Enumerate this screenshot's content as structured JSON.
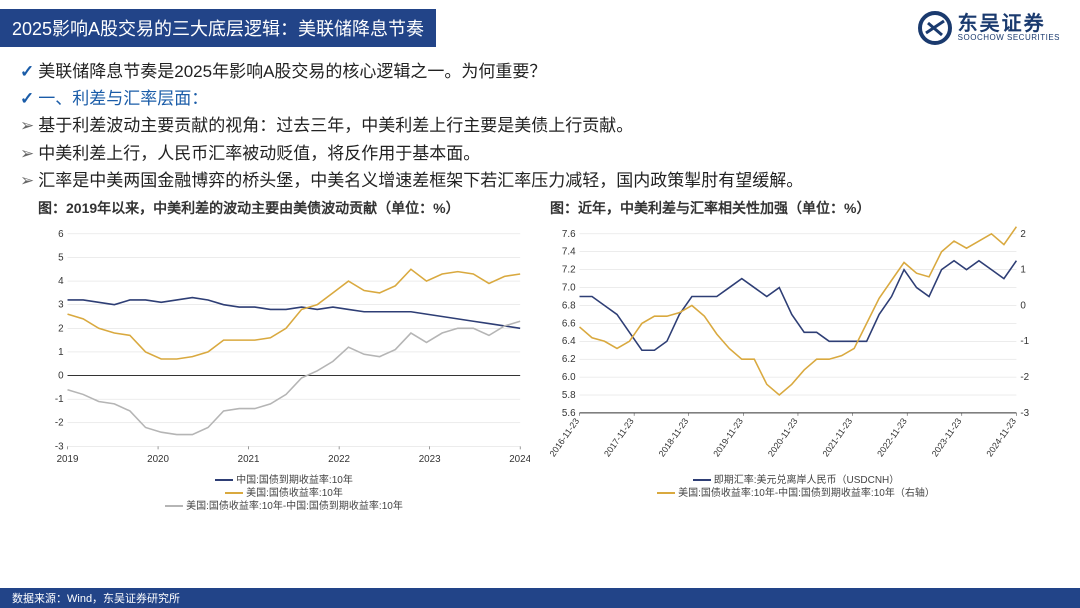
{
  "header": {
    "title": "2025影响A股交易的三大底层逻辑：美联储降息节奏",
    "logo_cn": "东吴证券",
    "logo_en": "SOOCHOW SECURITIES"
  },
  "bullets": {
    "l1": "美联储降息节奏是2025年影响A股交易的核心逻辑之一。为何重要？",
    "l2": "一、利差与汇率层面：",
    "l3": "基于利差波动主要贡献的视角：过去三年，中美利差上行主要是美债上行贡献。",
    "l4": "中美利差上行，人民币汇率被动贬值，将反作用于基本面。",
    "l5": "汇率是中美两国金融博弈的桥头堡，中美名义增速差框架下若汇率压力减轻，国内政策掣肘有望缓解。"
  },
  "chart1": {
    "type": "line",
    "title": "图：2019年以来，中美利差的波动主要由美债波动贡献（单位：%）",
    "xlabels": [
      "2019",
      "2020",
      "2021",
      "2022",
      "2023",
      "2024"
    ],
    "ylim": [
      -3,
      6
    ],
    "yticks": [
      -3,
      -2,
      -1,
      0,
      1,
      2,
      3,
      4,
      5,
      6
    ],
    "background_color": "#ffffff",
    "grid_color": "#d9d9d9",
    "axis_color": "#333333",
    "tick_fontsize": 10,
    "line_width": 1.6,
    "series": [
      {
        "name": "中国:国债到期收益率:10年",
        "color": "#2e3e75",
        "y": [
          3.2,
          3.2,
          3.1,
          3.0,
          3.2,
          3.2,
          3.1,
          3.2,
          3.3,
          3.2,
          3.0,
          2.9,
          2.9,
          2.8,
          2.8,
          2.9,
          2.8,
          2.9,
          2.8,
          2.7,
          2.7,
          2.7,
          2.7,
          2.6,
          2.5,
          2.4,
          2.3,
          2.2,
          2.1,
          2.0
        ]
      },
      {
        "name": "美国:国债收益率:10年",
        "color": "#d9a93f",
        "y": [
          2.6,
          2.4,
          2.0,
          1.8,
          1.7,
          1.0,
          0.7,
          0.7,
          0.8,
          1.0,
          1.5,
          1.5,
          1.5,
          1.6,
          2.0,
          2.8,
          3.0,
          3.5,
          4.0,
          3.6,
          3.5,
          3.8,
          4.5,
          4.0,
          4.3,
          4.4,
          4.3,
          3.9,
          4.2,
          4.3
        ]
      },
      {
        "name": "美国:国债收益率:10年-中国:国债到期收益率:10年",
        "color": "#b5b5b5",
        "y": [
          -0.6,
          -0.8,
          -1.1,
          -1.2,
          -1.5,
          -2.2,
          -2.4,
          -2.5,
          -2.5,
          -2.2,
          -1.5,
          -1.4,
          -1.4,
          -1.2,
          -0.8,
          -0.1,
          0.2,
          0.6,
          1.2,
          0.9,
          0.8,
          1.1,
          1.8,
          1.4,
          1.8,
          2.0,
          2.0,
          1.7,
          2.1,
          2.3
        ]
      }
    ],
    "legend": [
      {
        "label": "中国:国债到期收益率:10年",
        "color": "#2e3e75"
      },
      {
        "label": "美国:国债收益率:10年",
        "color": "#d9a93f"
      },
      {
        "label": "美国:国债收益率:10年-中国:国债到期收益率:10年",
        "color": "#b5b5b5"
      }
    ]
  },
  "chart2": {
    "type": "line-dual-axis",
    "title": "图：近年，中美利差与汇率相关性加强（单位：%）",
    "xlabels": [
      "2016-11-23",
      "2017-11-23",
      "2018-11-23",
      "2019-11-23",
      "2020-11-23",
      "2021-11-23",
      "2022-11-23",
      "2023-11-23",
      "2024-11-23"
    ],
    "y1lim": [
      5.6,
      7.6
    ],
    "y1ticks": [
      5.6,
      5.8,
      6.0,
      6.2,
      6.4,
      6.6,
      6.8,
      7.0,
      7.2,
      7.4,
      7.6
    ],
    "y2lim": [
      -3,
      2
    ],
    "y2ticks": [
      -3,
      -2,
      -1,
      0,
      1,
      2
    ],
    "background_color": "#ffffff",
    "grid_color": "#d9d9d9",
    "axis_color": "#333333",
    "tick_fontsize": 10,
    "line_width": 1.6,
    "series": [
      {
        "name": "即期汇率:美元兑离岸人民币(USDCNH)",
        "color": "#2e3e75",
        "axis": "y1",
        "y": [
          6.9,
          6.9,
          6.8,
          6.7,
          6.5,
          6.3,
          6.3,
          6.4,
          6.7,
          6.9,
          6.9,
          6.9,
          7.0,
          7.1,
          7.0,
          6.9,
          7.0,
          6.7,
          6.5,
          6.5,
          6.4,
          6.4,
          6.4,
          6.4,
          6.7,
          6.9,
          7.2,
          7.0,
          6.9,
          7.2,
          7.3,
          7.2,
          7.3,
          7.2,
          7.1,
          7.3
        ]
      },
      {
        "name": "美国:国债收益率:10年-中国:国债到期收益率:10年（右轴）",
        "color": "#d9a93f",
        "axis": "y2",
        "y": [
          -0.6,
          -0.9,
          -1.0,
          -1.2,
          -1.0,
          -0.5,
          -0.3,
          -0.3,
          -0.2,
          0.0,
          -0.3,
          -0.8,
          -1.2,
          -1.5,
          -1.5,
          -2.2,
          -2.5,
          -2.2,
          -1.8,
          -1.5,
          -1.5,
          -1.4,
          -1.2,
          -0.5,
          0.2,
          0.7,
          1.2,
          0.9,
          0.8,
          1.5,
          1.8,
          1.6,
          1.8,
          2.0,
          1.7,
          2.2
        ]
      }
    ],
    "legend": [
      {
        "label": "即期汇率:美元兑离岸人民币（USDCNH）",
        "color": "#2e3e75"
      },
      {
        "label": "美国:国债收益率:10年-中国:国债到期收益率:10年（右轴）",
        "color": "#d9a93f"
      }
    ]
  },
  "footer": {
    "text": "数据来源：Wind，东吴证券研究所"
  }
}
